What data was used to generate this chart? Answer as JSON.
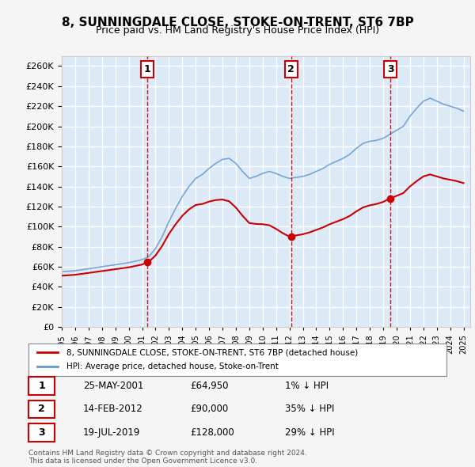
{
  "title": "8, SUNNINGDALE CLOSE, STOKE-ON-TRENT, ST6 7BP",
  "subtitle": "Price paid vs. HM Land Registry's House Price Index (HPI)",
  "ylabel_ticks": [
    0,
    20000,
    40000,
    60000,
    80000,
    100000,
    120000,
    140000,
    160000,
    180000,
    200000,
    220000,
    240000,
    260000
  ],
  "ylim": [
    0,
    270000
  ],
  "xlim_start": 1995.0,
  "xlim_end": 2025.5,
  "sale_dates": [
    2001.4,
    2012.12,
    2019.55
  ],
  "sale_prices": [
    64950,
    90000,
    128000
  ],
  "sale_labels": [
    "1",
    "2",
    "3"
  ],
  "legend_red": "8, SUNNINGDALE CLOSE, STOKE-ON-TRENT, ST6 7BP (detached house)",
  "legend_blue": "HPI: Average price, detached house, Stoke-on-Trent",
  "table_data": [
    [
      "1",
      "25-MAY-2001",
      "£64,950",
      "1% ↓ HPI"
    ],
    [
      "2",
      "14-FEB-2012",
      "£90,000",
      "35% ↓ HPI"
    ],
    [
      "3",
      "19-JUL-2019",
      "£128,000",
      "29% ↓ HPI"
    ]
  ],
  "footer": "Contains HM Land Registry data © Crown copyright and database right 2024.\nThis data is licensed under the Open Government Licence v3.0.",
  "background_color": "#dce9f7",
  "plot_bg_color": "#dce9f7",
  "grid_color": "#ffffff",
  "red_color": "#cc0000",
  "blue_color": "#6699cc",
  "sale_marker_color": "#cc0000",
  "dashed_line_color": "#cc0000"
}
